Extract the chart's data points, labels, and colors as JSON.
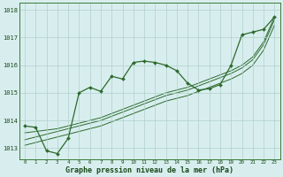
{
  "x": [
    0,
    1,
    2,
    3,
    4,
    5,
    6,
    7,
    8,
    9,
    10,
    11,
    12,
    13,
    14,
    15,
    16,
    17,
    18,
    19,
    20,
    21,
    22,
    23
  ],
  "y_main": [
    1013.8,
    1013.75,
    1012.9,
    1012.8,
    1013.35,
    1015.0,
    1015.2,
    1015.05,
    1015.6,
    1015.5,
    1016.1,
    1016.15,
    1016.1,
    1016.0,
    1015.8,
    1015.35,
    1015.1,
    1015.15,
    1015.3,
    1016.0,
    1017.1,
    1017.2,
    1017.3,
    1017.75
  ],
  "y_line1": [
    1013.55,
    1013.6,
    1013.65,
    1013.7,
    1013.8,
    1013.9,
    1014.0,
    1014.1,
    1014.25,
    1014.4,
    1014.55,
    1014.7,
    1014.85,
    1015.0,
    1015.1,
    1015.2,
    1015.35,
    1015.5,
    1015.65,
    1015.8,
    1016.0,
    1016.3,
    1016.85,
    1017.75
  ],
  "y_line2": [
    1013.3,
    1013.4,
    1013.5,
    1013.6,
    1013.7,
    1013.8,
    1013.9,
    1014.0,
    1014.15,
    1014.3,
    1014.45,
    1014.6,
    1014.75,
    1014.9,
    1015.0,
    1015.1,
    1015.25,
    1015.4,
    1015.55,
    1015.7,
    1015.9,
    1016.2,
    1016.75,
    1017.65
  ],
  "y_line3": [
    1013.1,
    1013.2,
    1013.3,
    1013.4,
    1013.5,
    1013.6,
    1013.7,
    1013.8,
    1013.95,
    1014.1,
    1014.25,
    1014.4,
    1014.55,
    1014.7,
    1014.8,
    1014.9,
    1015.05,
    1015.2,
    1015.35,
    1015.5,
    1015.7,
    1016.0,
    1016.55,
    1017.45
  ],
  "line_color": "#2d6a2d",
  "bg_color": "#d8eeee",
  "grid_color": "#afd0cc",
  "ylabel_values": [
    1013,
    1014,
    1015,
    1016,
    1017,
    1018
  ],
  "xlabel_label": "Graphe pression niveau de la mer (hPa)",
  "ylim": [
    1012.6,
    1018.25
  ],
  "xlim": [
    -0.5,
    23.5
  ]
}
